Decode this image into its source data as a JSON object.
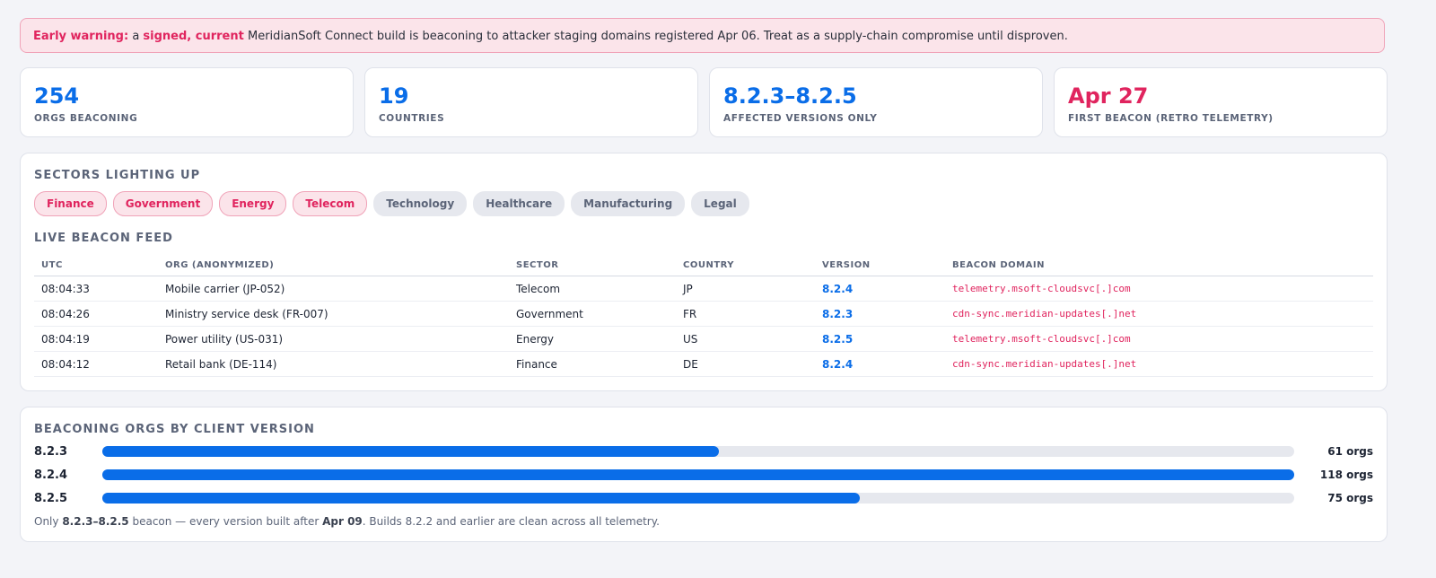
{
  "alert": [
    "Early warning:",
    " a ",
    "signed, current",
    " MeridianSoft Connect build is beaconing to attacker staging domains registered Apr 06. Treat as a supply-chain compromise until disproven."
  ],
  "stats": [
    {
      "value": "254",
      "label": "ORGS BEACONING",
      "alert": false
    },
    {
      "value": "19",
      "label": "COUNTRIES",
      "alert": false
    },
    {
      "value": "8.2.3–8.2.5",
      "label": "AFFECTED VERSIONS ONLY",
      "alert": false
    },
    {
      "value": "Apr 27",
      "label": "FIRST BEACON (RETRO TELEMETRY)",
      "alert": true
    }
  ],
  "sectors": {
    "title": "SECTORS LIGHTING UP",
    "items": [
      {
        "name": "Finance",
        "highlighted": true
      },
      {
        "name": "Government",
        "highlighted": true
      },
      {
        "name": "Energy",
        "highlighted": true
      },
      {
        "name": "Telecom",
        "highlighted": true
      },
      {
        "name": "Technology",
        "highlighted": false
      },
      {
        "name": "Healthcare",
        "highlighted": false
      },
      {
        "name": "Manufacturing",
        "highlighted": false
      },
      {
        "name": "Legal",
        "highlighted": false
      }
    ]
  },
  "feed": {
    "title": "LIVE BEACON FEED",
    "columns": [
      "UTC",
      "ORG (ANONYMIZED)",
      "SECTOR",
      "COUNTRY",
      "VERSION",
      "BEACON DOMAIN"
    ],
    "rows": [
      [
        "08:04:33",
        "Mobile carrier (JP-052)",
        "Telecom",
        "JP",
        "8.2.4",
        "telemetry.msoft-cloudsvc[.]com"
      ],
      [
        "08:04:26",
        "Ministry service desk (FR-007)",
        "Government",
        "FR",
        "8.2.3",
        "cdn-sync.meridian-updates[.]net"
      ],
      [
        "08:04:19",
        "Power utility (US-031)",
        "Energy",
        "US",
        "8.2.5",
        "telemetry.msoft-cloudsvc[.]com"
      ],
      [
        "08:04:12",
        "Retail bank (DE-114)",
        "Finance",
        "DE",
        "8.2.4",
        "cdn-sync.meridian-updates[.]net"
      ]
    ]
  },
  "chart_data": {
    "type": "bar",
    "orientation": "horizontal",
    "title": "BEACONING ORGS BY CLIENT VERSION",
    "categories": [
      "8.2.3",
      "8.2.4",
      "8.2.5"
    ],
    "values": [
      61,
      118,
      75
    ],
    "value_labels": [
      "61 orgs",
      "118 orgs",
      "75 orgs"
    ],
    "xlim": [
      0,
      118
    ],
    "color": "#0a6de8"
  },
  "footnote": [
    "Only ",
    "8.2.3–8.2.5",
    " beacon — every version built after ",
    "Apr 09",
    ". Builds 8.2.2 and earlier are clean across all telemetry."
  ]
}
